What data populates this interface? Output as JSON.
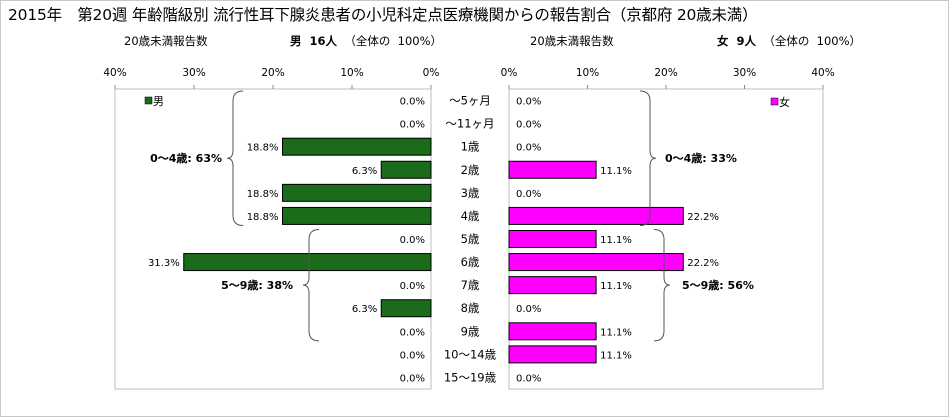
{
  "title": "2015年　第20週 年齢階級別 流行性耳下腺炎患者の小児科定点医療機関からの報告割合（京都府 20歳未満）",
  "left_header": {
    "label": "20歳未満報告数",
    "sex": "男",
    "count": "16人",
    "total_label": "（全体の",
    "total_pct": "100%）"
  },
  "right_header": {
    "label": "20歳未満報告数",
    "sex": "女",
    "count": "9人",
    "total_label": "（全体の",
    "total_pct": "100%）"
  },
  "chart_data": {
    "type": "bar",
    "orientation": "horizontal-butterfly",
    "categories": [
      "～5ヶ月",
      "～11ヶ月",
      "1歳",
      "2歳",
      "3歳",
      "4歳",
      "5歳",
      "6歳",
      "7歳",
      "8歳",
      "9歳",
      "10～14歳",
      "15～19歳"
    ],
    "series": [
      {
        "name": "男",
        "color": "#1a6b1a",
        "values": [
          0.0,
          0.0,
          18.8,
          6.3,
          18.8,
          18.8,
          0.0,
          31.3,
          0.0,
          6.3,
          0.0,
          0.0,
          0.0
        ],
        "labels": [
          "0.0%",
          "0.0%",
          "18.8%",
          "6.3%",
          "18.8%",
          "18.8%",
          "0.0%",
          "31.3%",
          "0.0%",
          "6.3%",
          "0.0%",
          "0.0%",
          "0.0%"
        ]
      },
      {
        "name": "女",
        "color": "#ff00ff",
        "values": [
          0.0,
          0.0,
          0.0,
          11.1,
          0.0,
          22.2,
          11.1,
          22.2,
          11.1,
          0.0,
          11.1,
          11.1,
          0.0
        ],
        "labels": [
          "0.0%",
          "0.0%",
          "0.0%",
          "11.1%",
          "0.0%",
          "22.2%",
          "11.1%",
          "22.2%",
          "11.1%",
          "0.0%",
          "11.1%",
          "11.1%",
          "0.0%"
        ]
      }
    ],
    "xlim": [
      0,
      40
    ],
    "ticks": [
      "40%",
      "30%",
      "20%",
      "10%",
      "0%"
    ],
    "ticks_right": [
      "0%",
      "10%",
      "20%",
      "30%",
      "40%"
    ],
    "brackets": {
      "male": [
        {
          "label": "0～4歳: 63%",
          "from": 0,
          "to": 5
        },
        {
          "label": "5～9歳: 38%",
          "from": 6,
          "to": 10
        }
      ],
      "female": [
        {
          "label": "0～4歳: 33%",
          "from": 0,
          "to": 5
        },
        {
          "label": "5～9歳: 56%",
          "from": 6,
          "to": 10
        }
      ]
    }
  }
}
